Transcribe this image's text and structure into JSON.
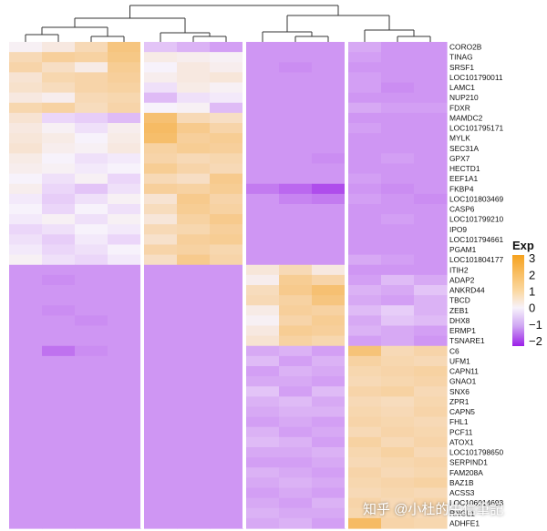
{
  "chart_data": {
    "type": "heatmap",
    "legend": {
      "title": "Exp",
      "ticks": [
        3,
        2,
        1,
        0,
        -1,
        -2
      ],
      "range": [
        -2.3,
        3.2
      ],
      "placement": "right"
    },
    "colorscale": {
      "low": "#9b1fe8",
      "mid": "#f7f2fb",
      "high": "#f6a21f"
    },
    "column_groups": [
      4,
      3,
      3,
      3
    ],
    "column_dendrogram": true,
    "genes": [
      "CORO2B",
      "TINAG",
      "SRSF1",
      "LOC101790011",
      "LAMC1",
      "NUP210",
      "FDXR",
      "MAMDC2",
      "LOC101795171",
      "MYLK",
      "SEC31A",
      "GPX7",
      "HECTD1",
      "EEF1A1",
      "FKBP4",
      "LOC101803469",
      "CASP6",
      "LOC101799210",
      "IPO9",
      "LOC101794661",
      "PGAM1",
      "LOC101804177",
      "ITIH2",
      "ADAP2",
      "ANKRD44",
      "TBCD",
      "ZEB1",
      "DHX8",
      "ERMP1",
      "TSNARE1",
      "C6",
      "UFM1",
      "CAPN11",
      "GNAO1",
      "SNX6",
      "ZPR1",
      "CAPN5",
      "FHL1",
      "PCF11",
      "ATOX1",
      "LOC101798650",
      "SERPIND1",
      "FAM208A",
      "BAZ1B",
      "ACSS3",
      "LOC106014693",
      "RNGL1",
      "ADHFE1"
    ],
    "values": [
      [
        0.1,
        0.4,
        1.0,
        1.8,
        -0.5,
        -0.7,
        -0.9,
        -1.0,
        -1.0,
        -1.0,
        -0.8,
        -1.0,
        -1.0
      ],
      [
        1.0,
        1.4,
        1.3,
        1.7,
        0.3,
        0.2,
        0.1,
        -1.0,
        -1.0,
        -1.0,
        -0.9,
        -1.0,
        -1.0
      ],
      [
        1.2,
        0.8,
        0.3,
        1.5,
        0.0,
        0.4,
        0.2,
        -1.0,
        -1.1,
        -1.0,
        -1.0,
        -1.0,
        -1.0
      ],
      [
        0.6,
        1.1,
        1.2,
        1.4,
        0.2,
        0.4,
        0.5,
        -1.0,
        -1.0,
        -1.0,
        -0.9,
        -1.0,
        -1.0
      ],
      [
        0.7,
        0.9,
        1.2,
        1.3,
        -0.2,
        0.3,
        0.1,
        -1.0,
        -1.0,
        -1.0,
        -0.9,
        -1.1,
        -1.0
      ],
      [
        0.4,
        0.2,
        1.0,
        1.1,
        -0.6,
        -0.2,
        -0.1,
        -1.0,
        -1.0,
        -1.0,
        -1.0,
        -1.0,
        -1.0
      ],
      [
        1.1,
        1.3,
        0.9,
        1.2,
        0.0,
        0.1,
        -0.6,
        -1.0,
        -1.0,
        -1.0,
        -0.8,
        -0.9,
        -0.9
      ],
      [
        0.6,
        -0.3,
        -0.4,
        -0.6,
        2.0,
        1.0,
        0.8,
        -1.0,
        -1.0,
        -1.0,
        -1.0,
        -1.0,
        -1.0
      ],
      [
        0.4,
        0.1,
        -0.2,
        0.2,
        2.2,
        1.6,
        1.2,
        -1.0,
        -1.0,
        -1.0,
        -0.9,
        -1.0,
        -1.0
      ],
      [
        0.5,
        0.3,
        0.0,
        0.3,
        2.1,
        1.4,
        1.5,
        -1.0,
        -1.0,
        -1.0,
        -1.0,
        -1.0,
        -1.0
      ],
      [
        0.6,
        0.2,
        0.1,
        0.4,
        1.3,
        1.5,
        1.4,
        -1.0,
        -1.0,
        -1.0,
        -1.0,
        -1.0,
        -1.0
      ],
      [
        0.3,
        0.0,
        -0.2,
        -0.1,
        1.2,
        1.0,
        1.1,
        -1.0,
        -1.0,
        -1.1,
        -1.0,
        -0.9,
        -1.0
      ],
      [
        0.2,
        0.1,
        -0.1,
        0.0,
        1.5,
        1.2,
        1.0,
        -1.0,
        -1.0,
        -1.0,
        -1.0,
        -1.0,
        -1.0
      ],
      [
        0.0,
        -0.2,
        0.1,
        -0.3,
        1.0,
        0.8,
        1.6,
        -1.0,
        -1.0,
        -1.0,
        -0.9,
        -1.0,
        -1.0
      ],
      [
        0.2,
        -0.3,
        -0.5,
        -0.2,
        1.4,
        1.3,
        1.5,
        -1.3,
        -1.5,
        -1.8,
        -1.0,
        -1.1,
        -1.0
      ],
      [
        -0.1,
        -0.4,
        -0.2,
        0.1,
        0.6,
        1.6,
        1.2,
        -1.0,
        -1.2,
        -1.3,
        -0.9,
        -1.0,
        -1.1
      ],
      [
        0.0,
        -0.3,
        0.0,
        -0.2,
        0.9,
        1.5,
        1.3,
        -1.0,
        -1.0,
        -1.0,
        -1.0,
        -1.0,
        -1.0
      ],
      [
        -0.1,
        0.1,
        -0.2,
        0.1,
        0.5,
        1.3,
        1.6,
        -1.0,
        -1.0,
        -1.0,
        -1.0,
        -0.9,
        -1.0
      ],
      [
        -0.3,
        -0.2,
        0.0,
        -0.1,
        1.0,
        1.1,
        1.4,
        -1.0,
        -1.0,
        -1.0,
        -1.0,
        -1.0,
        -1.0
      ],
      [
        -0.2,
        -0.4,
        -0.1,
        -0.3,
        0.7,
        1.4,
        1.5,
        -1.0,
        -1.0,
        -1.0,
        -1.0,
        -1.0,
        -1.0
      ],
      [
        -0.1,
        -0.3,
        -0.2,
        0.0,
        1.2,
        1.3,
        1.1,
        -1.0,
        -1.0,
        -1.0,
        -1.0,
        -1.0,
        -1.0
      ],
      [
        0.1,
        -0.2,
        -0.3,
        -0.1,
        0.8,
        1.6,
        1.2,
        -1.0,
        -1.0,
        -1.0,
        -0.8,
        -0.9,
        -1.0
      ],
      [
        -1.0,
        -1.0,
        -1.0,
        -1.0,
        -1.0,
        -1.0,
        -1.0,
        0.5,
        1.0,
        0.4,
        -1.0,
        -1.0,
        -1.0
      ],
      [
        -1.0,
        -1.1,
        -1.0,
        -1.0,
        -1.0,
        -1.0,
        -1.0,
        0.2,
        1.5,
        1.2,
        -0.9,
        -0.6,
        -0.8
      ],
      [
        -1.0,
        -1.0,
        -1.0,
        -1.0,
        -1.0,
        -1.0,
        -1.0,
        0.9,
        1.6,
        2.0,
        -0.7,
        -0.8,
        -0.5
      ],
      [
        -1.0,
        -1.0,
        -1.0,
        -1.0,
        -1.0,
        -1.0,
        -1.0,
        1.0,
        1.3,
        1.8,
        -0.8,
        -0.9,
        -0.7
      ],
      [
        -1.0,
        -1.1,
        -1.0,
        -1.0,
        -1.0,
        -1.0,
        -1.0,
        0.3,
        1.4,
        1.3,
        -0.6,
        -0.4,
        -0.7
      ],
      [
        -1.0,
        -1.0,
        -1.1,
        -1.0,
        -1.0,
        -1.0,
        -1.0,
        0.1,
        1.2,
        1.5,
        -0.8,
        -0.5,
        -0.6
      ],
      [
        -1.0,
        -1.0,
        -1.0,
        -1.0,
        -1.0,
        -1.0,
        -1.0,
        0.4,
        1.5,
        1.4,
        -0.7,
        -0.8,
        -0.9
      ],
      [
        -1.0,
        -1.0,
        -1.0,
        -1.0,
        -1.0,
        -1.0,
        -1.0,
        0.6,
        1.3,
        1.1,
        -0.9,
        -0.8,
        -1.0
      ],
      [
        -1.0,
        -1.4,
        -1.1,
        -1.0,
        -1.0,
        -1.0,
        -1.0,
        -0.8,
        -0.7,
        -0.9,
        1.9,
        1.0,
        1.2
      ],
      [
        -1.0,
        -1.0,
        -1.0,
        -1.0,
        -1.0,
        -1.0,
        -1.0,
        -0.6,
        -0.9,
        -0.7,
        1.3,
        1.1,
        1.0
      ],
      [
        -1.0,
        -1.0,
        -1.0,
        -1.0,
        -1.0,
        -1.0,
        -1.0,
        -0.9,
        -0.7,
        -0.8,
        1.1,
        1.2,
        1.3
      ],
      [
        -1.0,
        -1.0,
        -1.0,
        -1.0,
        -1.0,
        -1.0,
        -1.0,
        -0.8,
        -0.8,
        -0.9,
        1.0,
        1.1,
        1.2
      ],
      [
        -1.0,
        -1.0,
        -1.0,
        -1.0,
        -1.0,
        -1.0,
        -1.0,
        -0.5,
        -0.9,
        -0.6,
        1.2,
        1.3,
        1.0
      ],
      [
        -1.0,
        -1.0,
        -1.0,
        -1.0,
        -1.0,
        -1.0,
        -1.0,
        -0.7,
        -0.6,
        -0.8,
        1.0,
        0.9,
        1.1
      ],
      [
        -1.0,
        -1.0,
        -1.0,
        -1.0,
        -1.0,
        -1.0,
        -1.0,
        -0.8,
        -0.7,
        -0.7,
        1.1,
        1.0,
        1.2
      ],
      [
        -1.0,
        -1.0,
        -1.0,
        -1.0,
        -1.0,
        -1.0,
        -1.0,
        -0.9,
        -0.8,
        -0.9,
        1.2,
        1.1,
        1.0
      ],
      [
        -1.0,
        -1.0,
        -1.0,
        -1.0,
        -1.0,
        -1.0,
        -1.0,
        -0.7,
        -0.9,
        -0.8,
        1.0,
        1.2,
        1.1
      ],
      [
        -1.0,
        -1.0,
        -1.0,
        -1.0,
        -1.0,
        -1.0,
        -1.0,
        -0.6,
        -0.7,
        -0.9,
        1.3,
        1.0,
        1.2
      ],
      [
        -1.0,
        -1.0,
        -1.0,
        -1.0,
        -1.0,
        -1.0,
        -1.0,
        -0.8,
        -0.8,
        -0.7,
        1.1,
        1.3,
        1.0
      ],
      [
        -1.0,
        -1.0,
        -1.0,
        -1.0,
        -1.0,
        -1.0,
        -1.0,
        -0.9,
        -0.9,
        -0.8,
        1.0,
        1.1,
        1.2
      ],
      [
        -1.0,
        -1.0,
        -1.0,
        -1.0,
        -1.0,
        -1.0,
        -1.0,
        -0.7,
        -0.8,
        -0.9,
        1.2,
        1.0,
        1.1
      ],
      [
        -1.0,
        -1.0,
        -1.0,
        -1.0,
        -1.0,
        -1.0,
        -1.0,
        -0.8,
        -0.7,
        -0.8,
        1.1,
        1.2,
        1.3
      ],
      [
        -1.0,
        -1.0,
        -1.0,
        -1.0,
        -1.0,
        -1.0,
        -1.0,
        -0.9,
        -0.8,
        -0.9,
        1.0,
        1.1,
        1.0
      ],
      [
        -1.0,
        -1.0,
        -1.0,
        -1.0,
        -1.0,
        -1.0,
        -1.0,
        -0.8,
        -0.9,
        -0.7,
        1.2,
        1.0,
        1.2
      ],
      [
        -1.0,
        -1.0,
        -1.0,
        -1.0,
        -1.0,
        -1.0,
        -1.0,
        -0.7,
        -0.8,
        -0.8,
        1.1,
        1.1,
        1.0
      ],
      [
        -1.0,
        -1.0,
        -1.0,
        -1.0,
        -1.0,
        -1.0,
        -1.0,
        -0.8,
        -0.7,
        -0.9,
        2.2,
        1.2,
        1.1
      ]
    ]
  },
  "watermark": {
    "text": "知乎 @小杜的生信筆記"
  }
}
